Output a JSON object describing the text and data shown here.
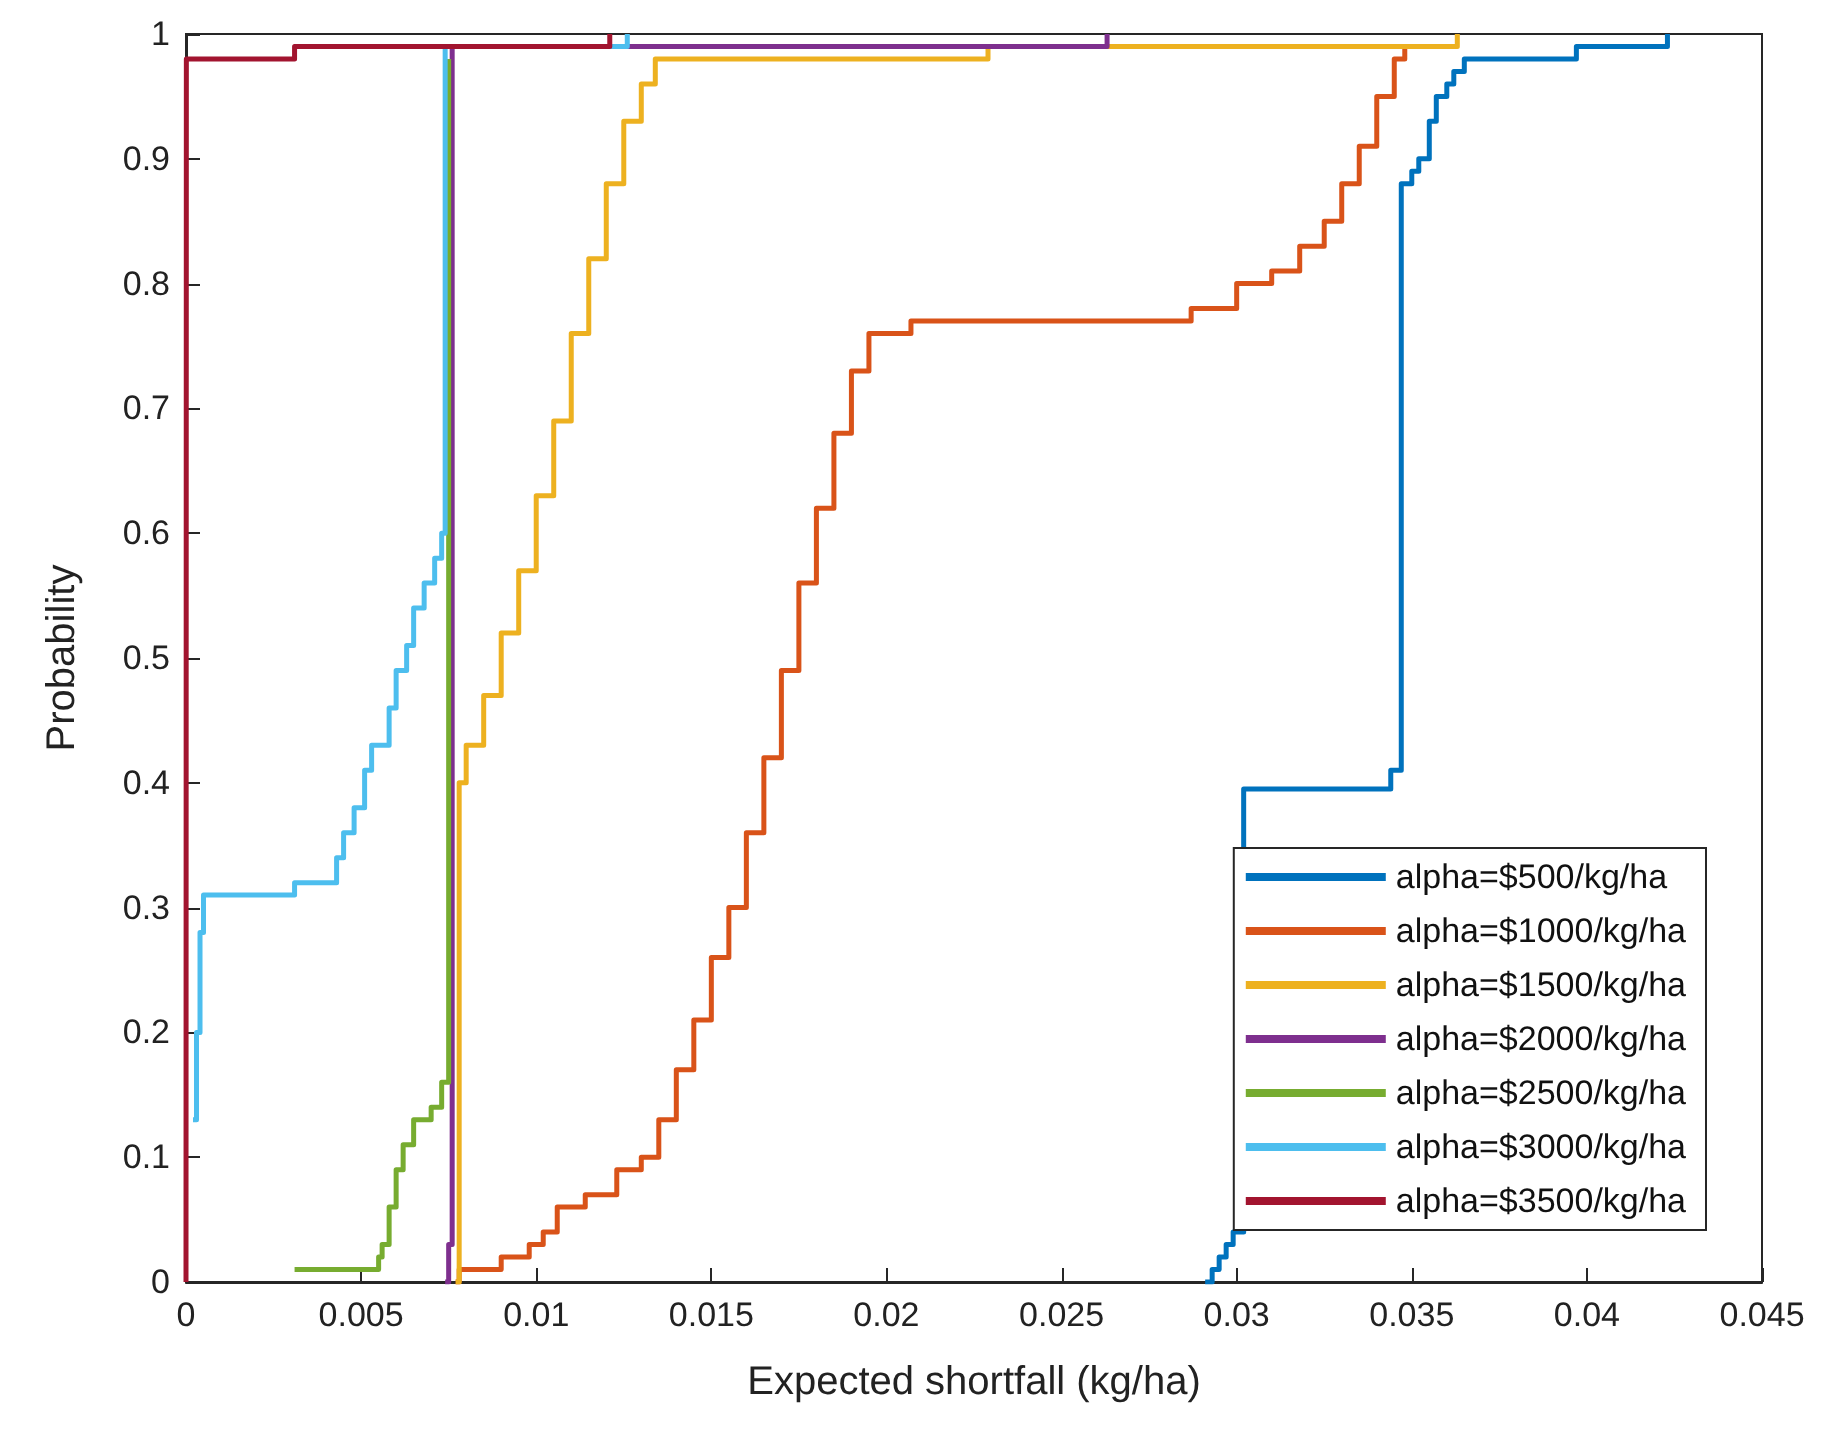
{
  "chart_data": {
    "type": "step",
    "xlabel": "Expected shortfall (kg/ha)",
    "ylabel": "Probability",
    "xlim": [
      0,
      0.045
    ],
    "xticks": [
      0,
      0.005,
      0.01,
      0.015,
      0.02,
      0.025,
      0.03,
      0.035,
      0.04,
      0.045
    ],
    "ylim": [
      0,
      1
    ],
    "yticks": [
      0,
      0.1,
      0.2,
      0.3,
      0.4,
      0.5,
      0.6,
      0.7,
      0.8,
      0.9,
      1
    ],
    "grid": false,
    "legend": "bottom right",
    "marker": "none",
    "line_style": "solid",
    "series": [
      {
        "name": "alpha=$500/kg/ha",
        "color": "#0072bd",
        "x": [
          0.0291,
          0.0293,
          0.0295,
          0.0297,
          0.0299,
          0.0302,
          0.0344,
          0.0347,
          0.035,
          0.0352,
          0.0355,
          0.0357,
          0.036,
          0.0362,
          0.0365,
          0.0397,
          0.0423
        ],
        "values": [
          0,
          0.01,
          0.02,
          0.03,
          0.04,
          0.395,
          0.41,
          0.88,
          0.89,
          0.9,
          0.93,
          0.95,
          0.96,
          0.97,
          0.98,
          0.99,
          1
        ]
      },
      {
        "name": "alpha=$1000/kg/ha",
        "color": "#d95319",
        "x": [
          0.0077,
          0.0078,
          0.009,
          0.0098,
          0.0102,
          0.0106,
          0.0114,
          0.0123,
          0.013,
          0.0135,
          0.014,
          0.0145,
          0.015,
          0.0155,
          0.016,
          0.0165,
          0.017,
          0.0175,
          0.018,
          0.0185,
          0.019,
          0.0195,
          0.0207,
          0.0287,
          0.03,
          0.031,
          0.0318,
          0.0325,
          0.033,
          0.0335,
          0.034,
          0.0345,
          0.0348
        ],
        "values": [
          0,
          0.01,
          0.02,
          0.03,
          0.04,
          0.06,
          0.07,
          0.09,
          0.1,
          0.13,
          0.17,
          0.21,
          0.26,
          0.3,
          0.36,
          0.42,
          0.49,
          0.56,
          0.62,
          0.68,
          0.73,
          0.76,
          0.77,
          0.78,
          0.8,
          0.81,
          0.83,
          0.85,
          0.88,
          0.91,
          0.95,
          0.98,
          0.99
        ]
      },
      {
        "name": "alpha=$1500/kg/ha",
        "color": "#edb120",
        "x": [
          0.0077,
          0.0078,
          0.008,
          0.0085,
          0.009,
          0.0095,
          0.01,
          0.0105,
          0.011,
          0.0115,
          0.012,
          0.0125,
          0.013,
          0.0134,
          0.0229,
          0.0363
        ],
        "values": [
          0,
          0.4,
          0.43,
          0.47,
          0.52,
          0.57,
          0.63,
          0.69,
          0.76,
          0.82,
          0.88,
          0.93,
          0.96,
          0.98,
          0.99,
          1
        ]
      },
      {
        "name": "alpha=$2000/kg/ha",
        "color": "#7e2f8e",
        "x": [
          0.0074,
          0.0075,
          0.0076,
          0.0263
        ],
        "values": [
          0,
          0.03,
          0.99,
          1
        ]
      },
      {
        "name": "alpha=$2500/kg/ha",
        "color": "#77ac30",
        "x": [
          0.0031,
          0.0055,
          0.0056,
          0.0058,
          0.006,
          0.0062,
          0.0065,
          0.007,
          0.0073,
          0.0075
        ],
        "values": [
          0.01,
          0.02,
          0.03,
          0.06,
          0.09,
          0.11,
          0.13,
          0.14,
          0.16,
          0.98
        ]
      },
      {
        "name": "alpha=$3000/kg/ha",
        "color": "#4dbeee",
        "x": [
          0.0002,
          0.0003,
          0.0004,
          0.0005,
          0.0031,
          0.0043,
          0.0045,
          0.0048,
          0.0051,
          0.0053,
          0.0058,
          0.006,
          0.0063,
          0.0065,
          0.0068,
          0.0071,
          0.0073,
          0.0074,
          0.0126
        ],
        "values": [
          0.13,
          0.2,
          0.28,
          0.31,
          0.32,
          0.34,
          0.36,
          0.38,
          0.41,
          0.43,
          0.46,
          0.49,
          0.51,
          0.54,
          0.56,
          0.58,
          0.6,
          0.99,
          1
        ]
      },
      {
        "name": "alpha=$3500/kg/ha",
        "color": "#a2142f",
        "x": [
          0,
          1e-05,
          0.0031,
          0.0121
        ],
        "values": [
          0,
          0.98,
          0.99,
          1
        ]
      }
    ]
  }
}
